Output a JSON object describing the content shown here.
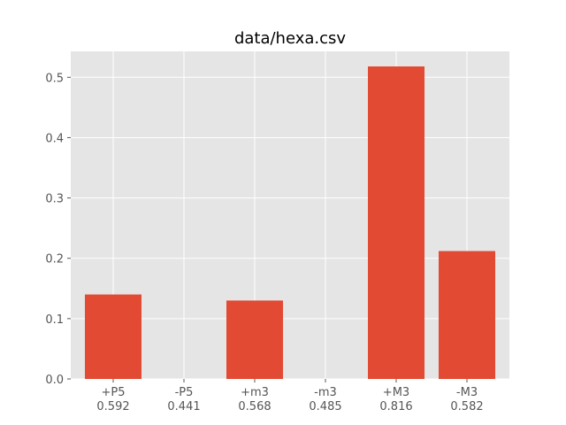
{
  "chart_data": {
    "type": "bar",
    "title": "data/hexa.csv",
    "xlabel": "",
    "ylabel": "",
    "categories": [
      "+P5\n0.592",
      "-P5\n0.441",
      "+m3\n0.568",
      "-m3\n0.485",
      "+M3\n0.816",
      "-M3\n0.582"
    ],
    "values": [
      0.14,
      0.0,
      0.13,
      0.0,
      0.518,
      0.212
    ],
    "ylim": [
      0,
      0.543
    ],
    "yticks": [
      "0.0",
      "0.1",
      "0.2",
      "0.3",
      "0.4",
      "0.5"
    ],
    "bar_color": "#E24A33",
    "background_color": "#E5E5E5",
    "grid_color": "#FFFFFF",
    "grid": true
  }
}
